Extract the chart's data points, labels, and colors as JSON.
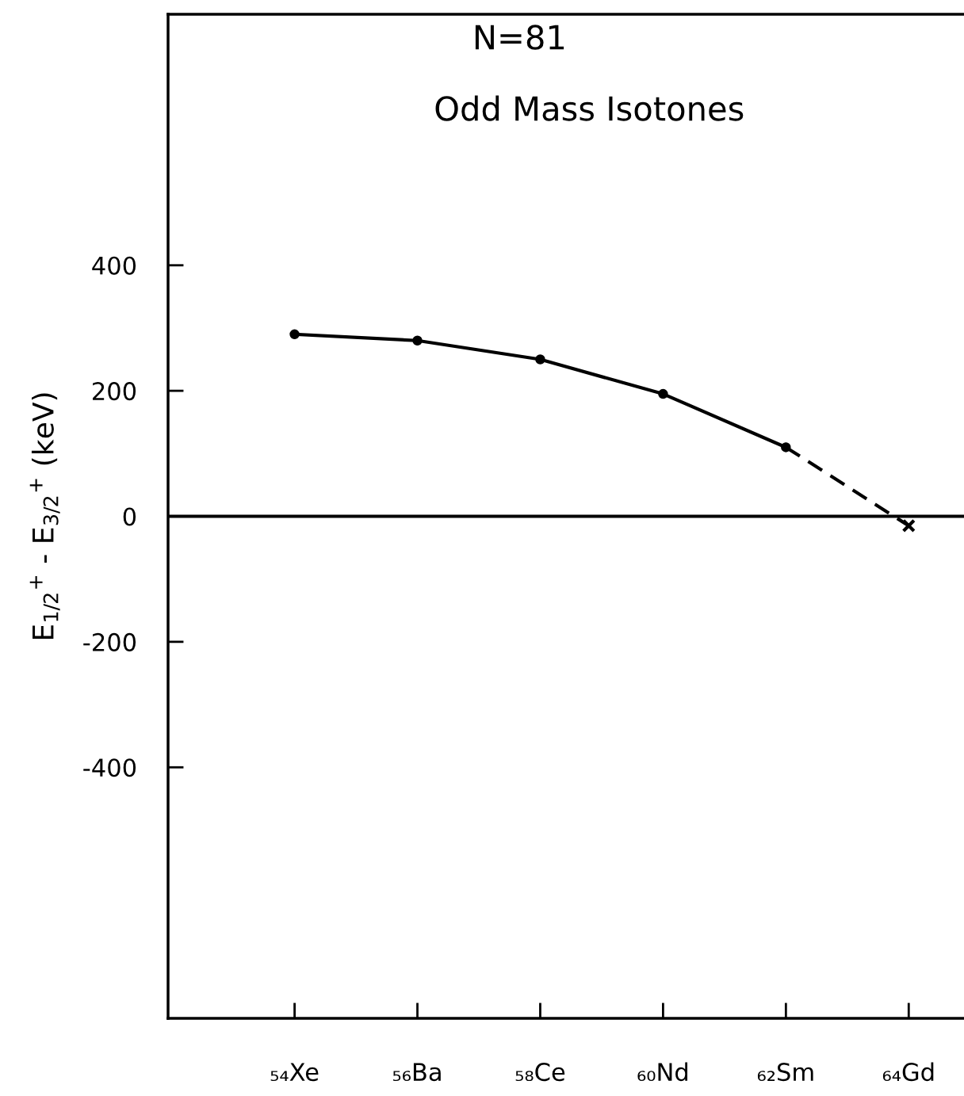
{
  "chart_data": {
    "type": "line",
    "title": "N=81",
    "subtitle": "Odd Mass Isotones",
    "ylabel": "E$_{1/2}$$^{+}$ - E$_{3/2}$$^{+}$ (keV)",
    "categories": [
      "₅₄Xe",
      "₅₆Ba",
      "₅₈Ce",
      "₆₀Nd",
      "₆₂Sm",
      "₆₄Gd"
    ],
    "series": [
      {
        "color": "#000000",
        "marker": "circle",
        "line_style": "solid",
        "values": [
          290,
          280,
          250,
          195,
          110,
          null
        ]
      },
      {
        "color": "#000000",
        "marker": "none",
        "line_style": "dashed",
        "values": [
          null,
          null,
          null,
          null,
          110,
          -15
        ]
      },
      {
        "type": "scatter",
        "color": "#000000",
        "marker": "cross",
        "values": [
          null,
          null,
          null,
          null,
          null,
          -15
        ]
      }
    ],
    "ylim": [
      -800,
      800
    ],
    "yticks": [
      -400,
      -200,
      0,
      200,
      400
    ],
    "ref_lines": [
      {
        "axis": "y",
        "value": 0,
        "color": "#000000"
      }
    ],
    "grid": false
  }
}
